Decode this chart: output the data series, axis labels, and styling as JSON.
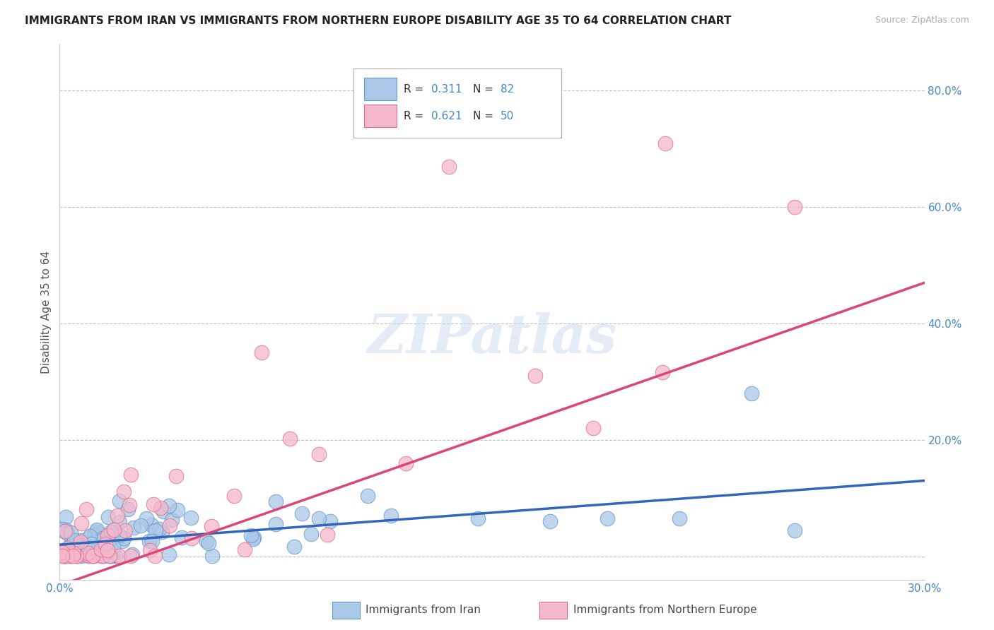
{
  "title": "IMMIGRANTS FROM IRAN VS IMMIGRANTS FROM NORTHERN EUROPE DISABILITY AGE 35 TO 64 CORRELATION CHART",
  "source": "Source: ZipAtlas.com",
  "xlabel_label": "Immigrants from Iran",
  "xlabel_label2": "Immigrants from Northern Europe",
  "ylabel": "Disability Age 35 to 64",
  "xlim": [
    0.0,
    0.3
  ],
  "ylim": [
    -0.04,
    0.88
  ],
  "x_ticks": [
    0.0,
    0.05,
    0.1,
    0.15,
    0.2,
    0.25,
    0.3
  ],
  "y_ticks": [
    0.0,
    0.2,
    0.4,
    0.6,
    0.8
  ],
  "y_tick_labels": [
    "",
    "20.0%",
    "40.0%",
    "60.0%",
    "80.0%"
  ],
  "grid_color": "#bbbbbb",
  "background_color": "#ffffff",
  "iran_color": "#aac8e8",
  "iran_edge_color": "#6699cc",
  "iran_line_color": "#3366bb",
  "iran_R": 0.311,
  "iran_N": 82,
  "ne_color": "#f5b8cc",
  "ne_edge_color": "#e07090",
  "ne_line_color": "#dd4477",
  "ne_R": 0.621,
  "ne_N": 50,
  "legend_color": "#4488cc",
  "watermark": "ZIPatlas",
  "title_fontsize": 11,
  "source_fontsize": 9,
  "tick_fontsize": 11,
  "ylabel_fontsize": 11
}
